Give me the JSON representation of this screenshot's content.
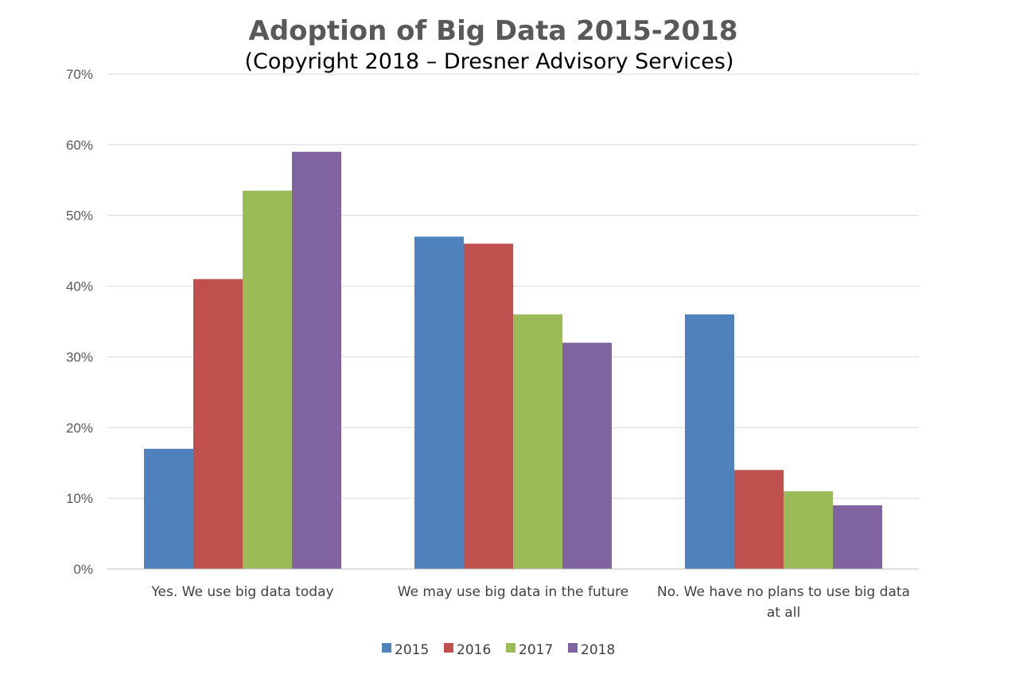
{
  "chart_data": {
    "type": "bar",
    "title": "Adoption of Big Data 2015-2018",
    "subtitle": "(Copyright 2018 – Dresner Advisory Services)",
    "categories": [
      [
        "Yes. We use big data today"
      ],
      [
        "We may use big data in the future"
      ],
      [
        "No. We have no plans to use big data",
        "at all"
      ]
    ],
    "series": [
      {
        "name": "2015",
        "color": "#4f81bd",
        "values": [
          17,
          47,
          36
        ]
      },
      {
        "name": "2016",
        "color": "#c0504d",
        "values": [
          41,
          46,
          14
        ]
      },
      {
        "name": "2017",
        "color": "#9bbb59",
        "values": [
          53.5,
          36,
          11
        ]
      },
      {
        "name": "2018",
        "color": "#8064a2",
        "values": [
          59,
          32,
          9
        ]
      }
    ],
    "y_ticks": [
      "0%",
      "10%",
      "20%",
      "30%",
      "40%",
      "50%",
      "60%",
      "70%"
    ],
    "ylim": [
      0,
      70
    ],
    "xlabel": "",
    "ylabel": "",
    "grid": true,
    "legend_position": "bottom"
  }
}
